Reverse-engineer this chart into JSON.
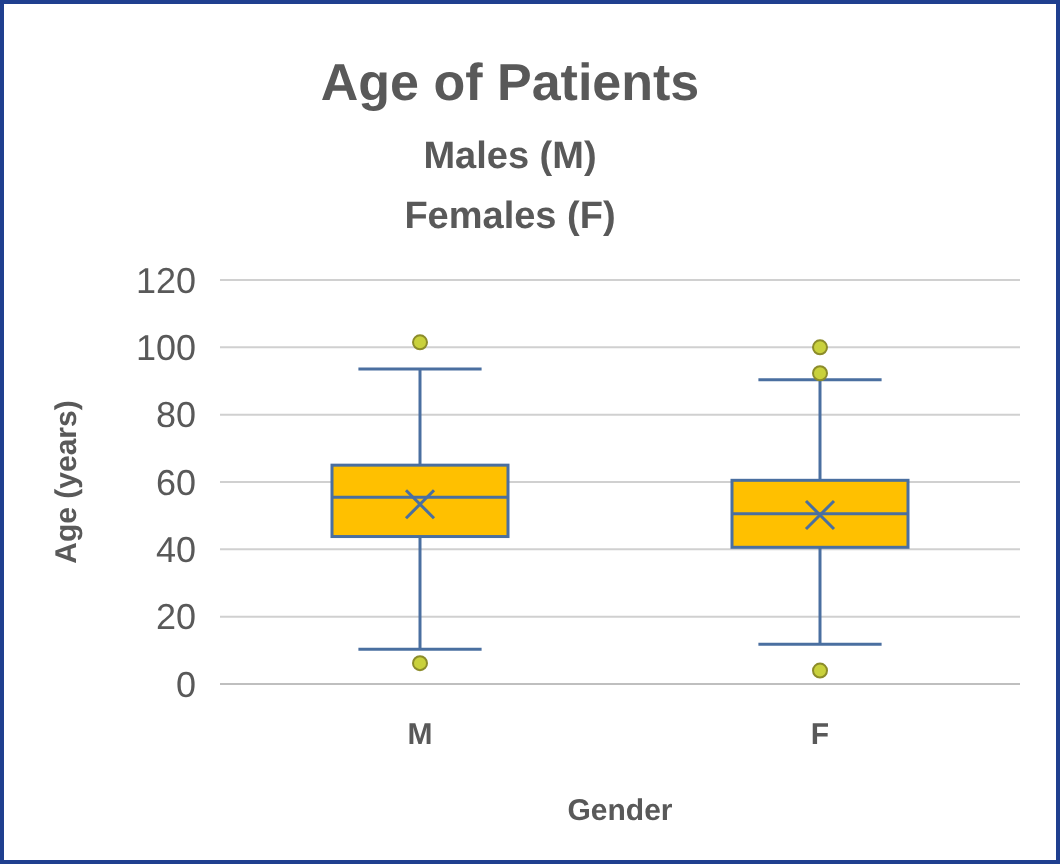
{
  "chart_data": {
    "type": "box",
    "title": "Age of Patients",
    "subtitle": "Males (M)\nFemales (F)",
    "xlabel": "Gender",
    "ylabel": "Age (years)",
    "categories": [
      "M",
      "F"
    ],
    "color": "#ffc000",
    "boxes": [
      {
        "low": 10.3,
        "q1": 43.8,
        "median": 55.5,
        "q3": 65,
        "high": 93.6,
        "mean": 53.4,
        "outliers": [
          101.5,
          6.2
        ]
      },
      {
        "low": 11.8,
        "q1": 40.6,
        "median": 50.6,
        "q3": 60.5,
        "high": 90.4,
        "mean": 50.2,
        "outliers": [
          100,
          92.3,
          4
        ]
      }
    ],
    "ylim": [
      0,
      120
    ],
    "yticks": [
      0,
      20,
      40,
      60,
      80,
      100,
      120
    ],
    "grid": true,
    "marker": "circle"
  }
}
